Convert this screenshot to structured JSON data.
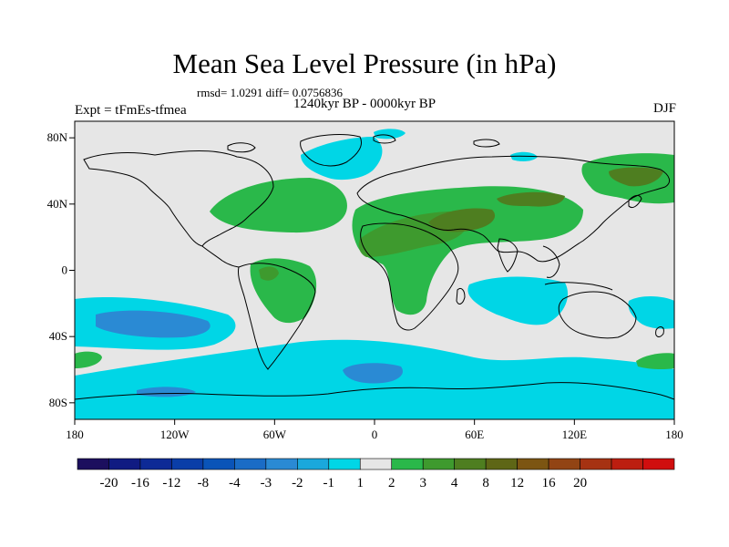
{
  "title": "Mean Sea Level Pressure (in hPa)",
  "stats_text": "rmsd= 1.0291 diff= 0.0756836",
  "subtitle": "1240kyr BP - 0000kyr BP",
  "experiment": "Expt = tFmEs-tfmea",
  "season": "DJF",
  "lat_ticks": [
    {
      "label": "80N",
      "lat": 80
    },
    {
      "label": "40N",
      "lat": 40
    },
    {
      "label": "0",
      "lat": 0
    },
    {
      "label": "40S",
      "lat": -40
    },
    {
      "label": "80S",
      "lat": -80
    }
  ],
  "lon_ticks": [
    {
      "label": "180",
      "lon": -180
    },
    {
      "label": "120W",
      "lon": -120
    },
    {
      "label": "60W",
      "lon": -60
    },
    {
      "label": "0",
      "lon": 0
    },
    {
      "label": "60E",
      "lon": 60
    },
    {
      "label": "120E",
      "lon": 120
    },
    {
      "label": "180",
      "lon": 180
    }
  ],
  "colorbar": {
    "colors": [
      "#1c0f5e",
      "#101b82",
      "#0d2a96",
      "#0a3ea8",
      "#0a54b8",
      "#1a6cc6",
      "#2a8ad4",
      "#1aa8dc",
      "#00d6e6",
      "#e6e6e6",
      "#2ab84a",
      "#3e9a2e",
      "#4e7e20",
      "#5e6616",
      "#7c5512",
      "#924414",
      "#a63212",
      "#bc1e10",
      "#d00e0e"
    ],
    "labels": [
      "-20",
      "-16",
      "-12",
      "-8",
      "-4",
      "-3",
      "-2",
      "-1",
      "1",
      "2",
      "3",
      "4",
      "8",
      "12",
      "16",
      "20"
    ],
    "label_edges": [
      1,
      2,
      3,
      4,
      5,
      6,
      7,
      8,
      9,
      10,
      11,
      12,
      13,
      14,
      15,
      16
    ]
  }
}
